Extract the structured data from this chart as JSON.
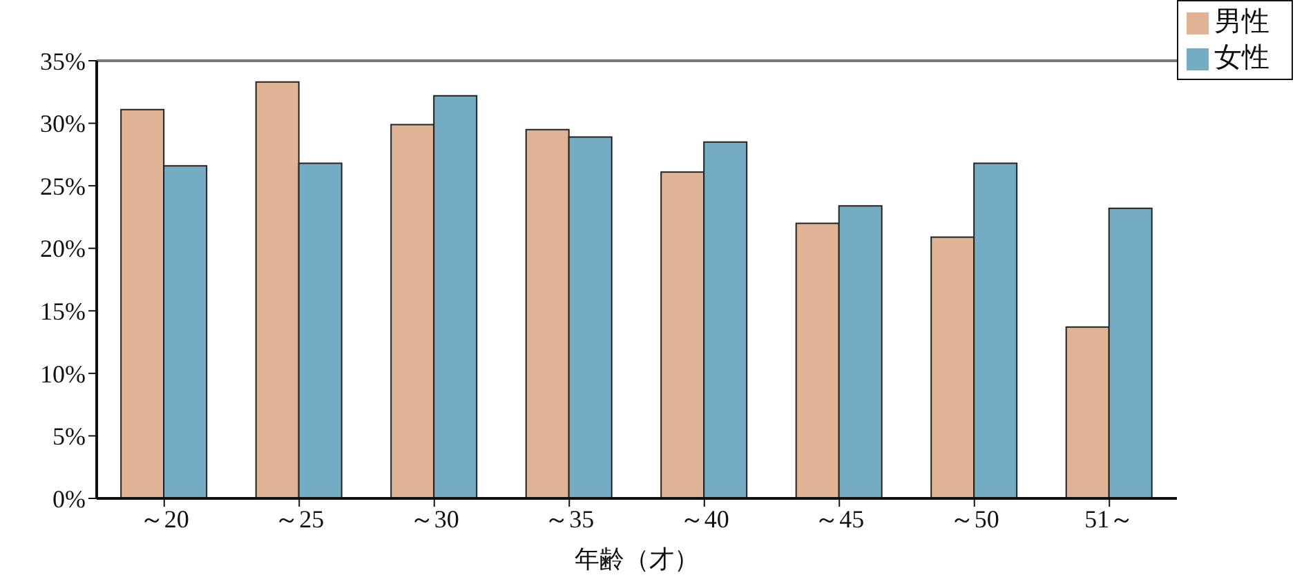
{
  "chart_data": {
    "type": "bar",
    "xlabel": "年齢（才）",
    "categories": [
      "～20",
      "～25",
      "～30",
      "～35",
      "～40",
      "～45",
      "～50",
      "51～"
    ],
    "series": [
      {
        "name": "男性",
        "color": "#e0b394",
        "values": [
          31.1,
          33.3,
          29.9,
          29.5,
          26.1,
          22.0,
          20.9,
          13.7
        ]
      },
      {
        "name": "女性",
        "color": "#74acc4",
        "values": [
          26.6,
          26.8,
          32.2,
          28.9,
          28.5,
          23.4,
          26.8,
          23.2
        ]
      }
    ],
    "ylim": [
      0,
      35
    ],
    "yticks": [
      {
        "value": 0,
        "label": "0%"
      },
      {
        "value": 5,
        "label": "5%"
      },
      {
        "value": 10,
        "label": "10%"
      },
      {
        "value": 15,
        "label": "15%"
      },
      {
        "value": 20,
        "label": "20%"
      },
      {
        "value": 25,
        "label": "25%"
      },
      {
        "value": 30,
        "label": "30%"
      },
      {
        "value": 35,
        "label": "35%"
      }
    ],
    "grid": false,
    "legend": "top right"
  }
}
